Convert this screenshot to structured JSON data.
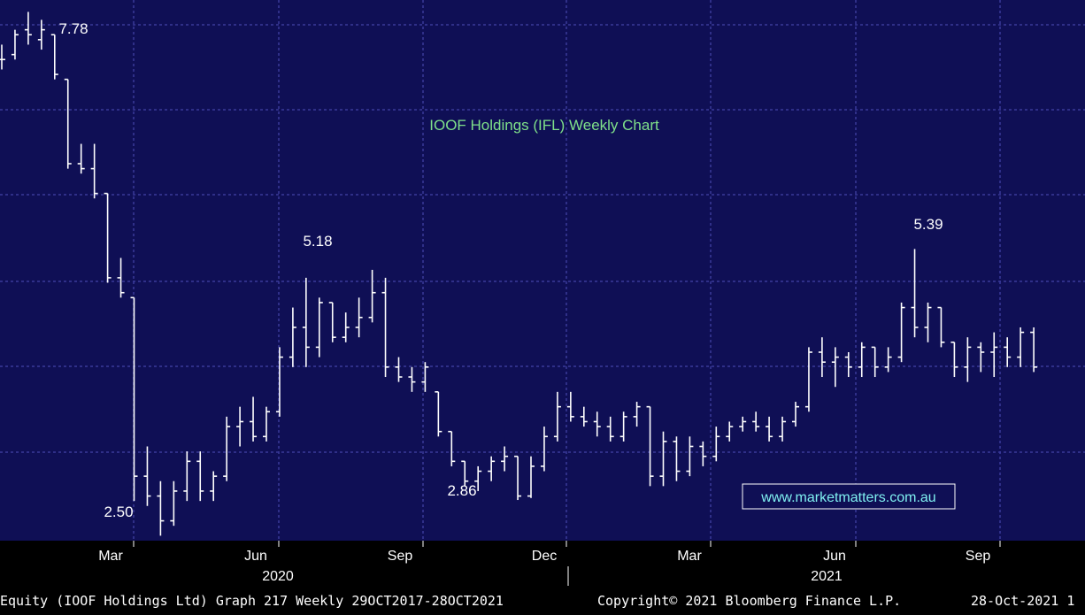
{
  "chart_data": {
    "type": "ohlc",
    "title": "IOOF Holdings (IFL) Weekly Chart",
    "watermark": "www.marketmatters.com.au",
    "x_tick_labels": [
      "Mar",
      "Jun",
      "Sep",
      "Dec",
      "Mar",
      "Jun",
      "Sep"
    ],
    "year_labels": [
      "2020",
      "2021"
    ],
    "annotations": [
      {
        "text": "7.78",
        "value": 7.78
      },
      {
        "text": "5.18",
        "value": 5.18
      },
      {
        "text": "2.50",
        "value": 2.5
      },
      {
        "text": "2.86",
        "value": 2.86
      },
      {
        "text": "5.39",
        "value": 5.39
      }
    ],
    "ylim": [
      2.45,
      7.9
    ],
    "grid": true,
    "colors": {
      "plot_bg": "#0f0f55",
      "grid": "#3a3a9a",
      "bars": "#ffffff",
      "title": "#7fe08a",
      "text": "#ffffff"
    },
    "series": [
      {
        "values": [
          [
            7.3,
            7.45,
            7.2,
            7.3
          ],
          [
            7.35,
            7.6,
            7.3,
            7.55
          ],
          [
            7.6,
            7.78,
            7.45,
            7.55
          ],
          [
            7.5,
            7.7,
            7.4,
            7.6
          ],
          [
            7.55,
            7.55,
            7.1,
            7.15
          ],
          [
            7.1,
            7.1,
            6.2,
            6.25
          ],
          [
            6.25,
            6.45,
            6.15,
            6.2
          ],
          [
            6.2,
            6.45,
            5.9,
            5.95
          ],
          [
            5.95,
            5.95,
            5.05,
            5.1
          ],
          [
            5.1,
            5.3,
            4.9,
            4.95
          ],
          [
            4.9,
            4.9,
            2.85,
            3.1
          ],
          [
            3.1,
            3.4,
            2.8,
            2.9
          ],
          [
            2.9,
            3.05,
            2.5,
            2.65
          ],
          [
            2.65,
            3.05,
            2.6,
            2.95
          ],
          [
            2.95,
            3.35,
            2.85,
            3.25
          ],
          [
            3.25,
            3.35,
            2.85,
            2.95
          ],
          [
            2.95,
            3.15,
            2.85,
            3.1
          ],
          [
            3.1,
            3.7,
            3.05,
            3.6
          ],
          [
            3.6,
            3.8,
            3.4,
            3.65
          ],
          [
            3.65,
            3.9,
            3.45,
            3.5
          ],
          [
            3.5,
            3.8,
            3.45,
            3.75
          ],
          [
            3.75,
            4.4,
            3.7,
            4.3
          ],
          [
            4.3,
            4.8,
            4.2,
            4.6
          ],
          [
            4.6,
            5.1,
            4.2,
            4.4
          ],
          [
            4.4,
            4.9,
            4.3,
            4.85
          ],
          [
            4.85,
            4.85,
            4.45,
            4.5
          ],
          [
            4.5,
            4.75,
            4.45,
            4.6
          ],
          [
            4.6,
            4.9,
            4.5,
            4.7
          ],
          [
            4.7,
            5.18,
            4.65,
            4.95
          ],
          [
            4.95,
            5.1,
            4.1,
            4.2
          ],
          [
            4.2,
            4.3,
            4.05,
            4.1
          ],
          [
            4.1,
            4.2,
            3.95,
            4.05
          ],
          [
            4.05,
            4.25,
            3.95,
            4.2
          ],
          [
            3.95,
            3.95,
            3.5,
            3.55
          ],
          [
            3.55,
            3.55,
            3.2,
            3.25
          ],
          [
            3.25,
            3.25,
            3.0,
            3.05
          ],
          [
            3.05,
            3.2,
            2.95,
            3.15
          ],
          [
            3.15,
            3.3,
            3.05,
            3.25
          ],
          [
            3.25,
            3.4,
            3.15,
            3.3
          ],
          [
            3.3,
            3.3,
            2.86,
            2.9
          ],
          [
            2.9,
            3.3,
            2.88,
            3.2
          ],
          [
            3.2,
            3.6,
            3.15,
            3.5
          ],
          [
            3.5,
            3.95,
            3.45,
            3.8
          ],
          [
            3.8,
            3.95,
            3.65,
            3.7
          ],
          [
            3.7,
            3.8,
            3.6,
            3.65
          ],
          [
            3.65,
            3.75,
            3.5,
            3.6
          ],
          [
            3.6,
            3.7,
            3.45,
            3.5
          ],
          [
            3.5,
            3.75,
            3.45,
            3.7
          ],
          [
            3.7,
            3.85,
            3.6,
            3.8
          ],
          [
            3.8,
            3.8,
            3.0,
            3.1
          ],
          [
            3.1,
            3.55,
            3.0,
            3.45
          ],
          [
            3.45,
            3.5,
            3.05,
            3.15
          ],
          [
            3.15,
            3.5,
            3.1,
            3.4
          ],
          [
            3.4,
            3.45,
            3.2,
            3.3
          ],
          [
            3.3,
            3.6,
            3.25,
            3.5
          ],
          [
            3.5,
            3.65,
            3.45,
            3.6
          ],
          [
            3.6,
            3.7,
            3.55,
            3.65
          ],
          [
            3.65,
            3.75,
            3.55,
            3.6
          ],
          [
            3.6,
            3.7,
            3.45,
            3.5
          ],
          [
            3.5,
            3.7,
            3.45,
            3.65
          ],
          [
            3.65,
            3.85,
            3.6,
            3.8
          ],
          [
            3.8,
            4.4,
            3.75,
            4.35
          ],
          [
            4.35,
            4.5,
            4.1,
            4.25
          ],
          [
            4.25,
            4.4,
            4.0,
            4.3
          ],
          [
            4.3,
            4.35,
            4.1,
            4.2
          ],
          [
            4.2,
            4.45,
            4.1,
            4.4
          ],
          [
            4.4,
            4.4,
            4.1,
            4.2
          ],
          [
            4.2,
            4.4,
            4.15,
            4.3
          ],
          [
            4.3,
            4.85,
            4.25,
            4.8
          ],
          [
            4.8,
            5.39,
            4.5,
            4.6
          ],
          [
            4.6,
            4.85,
            4.45,
            4.8
          ],
          [
            4.8,
            4.8,
            4.4,
            4.45
          ],
          [
            4.45,
            4.45,
            4.1,
            4.2
          ],
          [
            4.2,
            4.5,
            4.05,
            4.4
          ],
          [
            4.4,
            4.45,
            4.15,
            4.35
          ],
          [
            4.35,
            4.55,
            4.1,
            4.4
          ],
          [
            4.4,
            4.5,
            4.2,
            4.3
          ],
          [
            4.3,
            4.6,
            4.2,
            4.55
          ],
          [
            4.55,
            4.6,
            4.15,
            4.2
          ]
        ]
      }
    ]
  },
  "footer": {
    "left": "Equity (IOOF Holdings Ltd) Graph 217  Weekly 29OCT2017-28OCT2021",
    "copyright": "Copyright© 2021 Bloomberg Finance L.P.",
    "date": "28-Oct-2021 1"
  }
}
